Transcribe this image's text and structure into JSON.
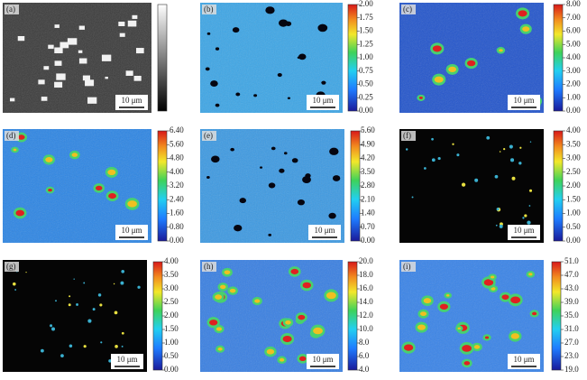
{
  "panels": [
    {
      "label": "(a)",
      "scale_bar": "10 μm"
    },
    {
      "label": "(b)",
      "scale_bar": "10 μm",
      "colorbar_ticks": [
        "0.00",
        "0.25",
        "0.50",
        "0.75",
        "1.00",
        "1.25",
        "1.50",
        "1.75",
        "2.00"
      ]
    },
    {
      "label": "(c)",
      "scale_bar": "10 μm",
      "colorbar_ticks": [
        "0.00",
        "1.00",
        "2.00",
        "3.00",
        "4.00",
        "5.00",
        "6.00",
        "7.00",
        "8.00"
      ]
    },
    {
      "label": "(d)",
      "scale_bar": "10 μm",
      "colorbar_ticks": [
        "0.00",
        "0.80",
        "1.60",
        "2.40",
        "3.20",
        "4.00",
        "4.80",
        "5.60",
        "6.40"
      ]
    },
    {
      "label": "(e)",
      "scale_bar": "10 μm",
      "colorbar_ticks": [
        "0.00",
        "0.70",
        "1.40",
        "2.10",
        "2.80",
        "3.50",
        "4.20",
        "4.90",
        "5.60"
      ]
    },
    {
      "label": "(f)",
      "scale_bar": "10 μm",
      "colorbar_ticks": [
        "0.00",
        "0.50",
        "1.00",
        "1.50",
        "2.00",
        "2.50",
        "3.00",
        "3.50",
        "4.00"
      ]
    },
    {
      "label": "(g)",
      "scale_bar": "10 μm",
      "colorbar_ticks": [
        "0.00",
        "0.50",
        "1.00",
        "1.50",
        "2.00",
        "2.50",
        "3.00",
        "3.50",
        "4.00"
      ]
    },
    {
      "label": "(h)",
      "scale_bar": "10 μm",
      "colorbar_ticks": [
        "4.0",
        "6.0",
        "8.0",
        "10.0",
        "12.0",
        "14.0",
        "16.0",
        "18.0",
        "20.0"
      ]
    },
    {
      "label": "(i)",
      "scale_bar": "10 μm",
      "colorbar_ticks": [
        "19.0",
        "23.0",
        "27.0",
        "31.0",
        "35.0",
        "39.0",
        "43.0",
        "47.0",
        "51.0"
      ]
    }
  ]
}
